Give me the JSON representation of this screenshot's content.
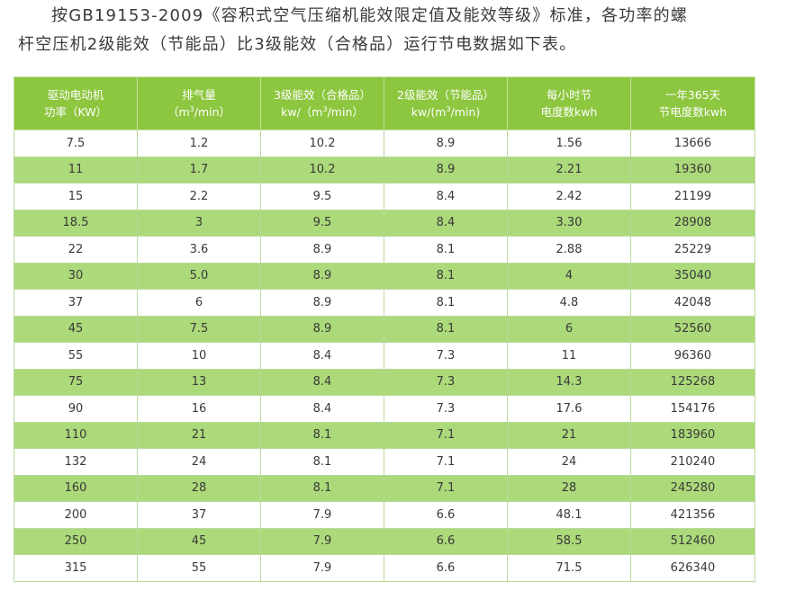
{
  "intro": {
    "line1": "按GB19153-2009《容积式空气压缩机能效限定值及能效等级》标准，各功率的螺",
    "line2": "杆空压机2级能效（节能品）比3级能效（合格品）运行节电数据如下表。"
  },
  "table": {
    "headers": [
      {
        "l1": "驱动电动机",
        "l2": "功率（KW）"
      },
      {
        "l1": "排气量",
        "l2_pre": "（m",
        "l2_sup": "3",
        "l2_post": "/min）"
      },
      {
        "l1": "3级能效（合格品）",
        "l2_pre": "kw/（m",
        "l2_sup": "3",
        "l2_post": "/min）"
      },
      {
        "l1": "2级能效（节能品）",
        "l2_pre": "kw/(m",
        "l2_sup": "3",
        "l2_post": "/min)"
      },
      {
        "l1": "每小时节",
        "l2": "电度数kwh"
      },
      {
        "l1": "一年365天",
        "l2": "节电度数kwh"
      }
    ],
    "rows": [
      [
        "7.5",
        "1.2",
        "10.2",
        "8.9",
        "1.56",
        "13666"
      ],
      [
        "11",
        "1.7",
        "10.2",
        "8.9",
        "2.21",
        "19360"
      ],
      [
        "15",
        "2.2",
        "9.5",
        "8.4",
        "2.42",
        "21199"
      ],
      [
        "18.5",
        "3",
        "9.5",
        "8.4",
        "3.30",
        "28908"
      ],
      [
        "22",
        "3.6",
        "8.9",
        "8.1",
        "2.88",
        "25229"
      ],
      [
        "30",
        "5.0",
        "8.9",
        "8.1",
        "4",
        "35040"
      ],
      [
        "37",
        "6",
        "8.9",
        "8.1",
        "4.8",
        "42048"
      ],
      [
        "45",
        "7.5",
        "8.9",
        "8.1",
        "6",
        "52560"
      ],
      [
        "55",
        "10",
        "8.4",
        "7.3",
        "11",
        "96360"
      ],
      [
        "75",
        "13",
        "8.4",
        "7.3",
        "14.3",
        "125268"
      ],
      [
        "90",
        "16",
        "8.4",
        "7.3",
        "17.6",
        "154176"
      ],
      [
        "110",
        "21",
        "8.1",
        "7.1",
        "21",
        "183960"
      ],
      [
        "132",
        "24",
        "8.1",
        "7.1",
        "24",
        "210240"
      ],
      [
        "160",
        "28",
        "8.1",
        "7.1",
        "28",
        "245280"
      ],
      [
        "200",
        "37",
        "7.9",
        "6.6",
        "48.1",
        "421356"
      ],
      [
        "250",
        "45",
        "7.9",
        "6.6",
        "58.5",
        "512460"
      ],
      [
        "315",
        "55",
        "7.9",
        "6.6",
        "71.5",
        "626340"
      ]
    ]
  },
  "colors": {
    "header_bg": "#8dc63f",
    "stripe_bg": "#acd97a",
    "text": "#3a3a3a"
  }
}
